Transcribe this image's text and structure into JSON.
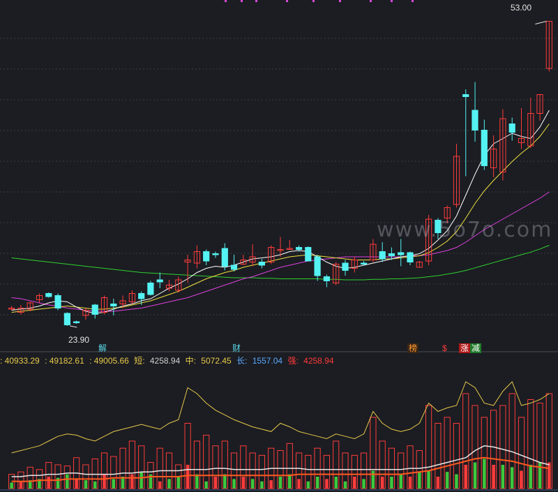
{
  "watermark": "www.5o7o.com",
  "price_labels": {
    "high": "53.00",
    "low": "23.90"
  },
  "event_tags": [
    {
      "text": "解",
      "color": "#5ad8e8",
      "bg": "transparent"
    },
    {
      "text": "财",
      "color": "#5ad8e8",
      "bg": "transparent"
    },
    {
      "text": "榜",
      "color": "#ff9a2e",
      "bg": "#3a2616"
    },
    {
      "text": "$",
      "color": "#ff3a3a",
      "bg": "transparent"
    },
    {
      "text": "涨",
      "color": "#ffffff",
      "bg": "#b01818"
    },
    {
      "text": "减",
      "color": "#ffffff",
      "bg": "#1e7a2a"
    }
  ],
  "info_bar": [
    {
      "text": ": 40933.29",
      "color": "#e8c84a"
    },
    {
      "text": ": 49182.61",
      "color": "#e8c84a"
    },
    {
      "text": ": 49005.66",
      "color": "#e8c84a"
    },
    {
      "text": "短:",
      "color": "#e8c84a"
    },
    {
      "text": "4258.94",
      "color": "#cfcfcf"
    },
    {
      "text": "中:",
      "color": "#e8c84a"
    },
    {
      "text": "5072.45",
      "color": "#e8c84a"
    },
    {
      "text": "长:",
      "color": "#5aa8ff"
    },
    {
      "text": "1557.04",
      "color": "#5aa8ff"
    },
    {
      "text": "强:",
      "color": "#ff3a3a"
    },
    {
      "text": "4258.94",
      "color": "#ff3a3a"
    }
  ],
  "colors": {
    "up": "#ff3b3b",
    "down": "#54f2f2",
    "ma_short": "#ffffff",
    "ma_mid": "#f0e040",
    "ma_long": "#e040e0",
    "ma_longer": "#30d030",
    "background": "#1b1d22"
  },
  "chart_data": {
    "type": "candlestick",
    "price_range": [
      22.5,
      54.5
    ],
    "candles": [
      [
        25.6,
        25.8,
        25.4,
        25.6
      ],
      [
        25.2,
        25.9,
        25.0,
        25.6
      ],
      [
        25.5,
        26.2,
        25.3,
        26.1
      ],
      [
        26.4,
        27.0,
        26.1,
        26.8
      ],
      [
        27.0,
        27.1,
        26.6,
        26.7
      ],
      [
        26.8,
        27.0,
        25.4,
        25.6
      ],
      [
        25.1,
        25.2,
        23.9,
        24.0
      ],
      [
        24.3,
        24.4,
        24.1,
        24.2
      ],
      [
        24.9,
        25.6,
        24.5,
        25.4
      ],
      [
        25.9,
        26.0,
        24.6,
        25.0
      ],
      [
        25.2,
        26.8,
        25.0,
        26.6
      ],
      [
        26.0,
        26.5,
        24.9,
        25.8
      ],
      [
        26.0,
        26.8,
        25.6,
        26.3
      ],
      [
        26.2,
        27.3,
        26.0,
        27.0
      ],
      [
        27.0,
        27.2,
        25.9,
        26.5
      ],
      [
        28.0,
        28.2,
        26.8,
        26.9
      ],
      [
        28.3,
        29.0,
        27.5,
        28.1
      ],
      [
        27.5,
        28.3,
        27.2,
        27.8
      ],
      [
        27.3,
        28.6,
        27.1,
        28.3
      ],
      [
        30.0,
        30.7,
        28.0,
        30.2
      ],
      [
        29.9,
        31.6,
        29.4,
        31.0
      ],
      [
        31.0,
        31.2,
        29.7,
        30.1
      ],
      [
        30.8,
        31.0,
        30.4,
        30.7
      ],
      [
        31.3,
        31.8,
        29.2,
        29.6
      ],
      [
        29.7,
        30.7,
        29.1,
        29.3
      ],
      [
        29.8,
        30.7,
        29.7,
        30.2
      ],
      [
        30.0,
        31.7,
        29.6,
        30.5
      ],
      [
        30.0,
        30.3,
        29.4,
        29.7
      ],
      [
        30.0,
        31.6,
        29.8,
        31.4
      ],
      [
        31.2,
        32.4,
        30.5,
        31.2
      ],
      [
        31.3,
        32.1,
        31.2,
        31.3
      ],
      [
        31.4,
        31.6,
        31.0,
        31.2
      ],
      [
        31.4,
        31.5,
        30.1,
        30.1
      ],
      [
        30.5,
        30.7,
        28.2,
        28.7
      ],
      [
        28.6,
        28.8,
        27.6,
        28.2
      ],
      [
        28.0,
        30.0,
        27.8,
        29.8
      ],
      [
        29.9,
        30.2,
        28.7,
        29.2
      ],
      [
        29.4,
        30.5,
        29.0,
        30.2
      ],
      [
        29.9,
        30.1,
        29.7,
        29.8
      ],
      [
        30.2,
        32.2,
        30.0,
        31.7
      ],
      [
        31.0,
        31.9,
        30.0,
        30.3
      ],
      [
        30.8,
        31.4,
        30.2,
        30.6
      ],
      [
        30.9,
        32.2,
        29.6,
        30.7
      ],
      [
        30.9,
        31.0,
        29.7,
        30.0
      ],
      [
        29.5,
        30.1,
        29.5,
        30.0
      ],
      [
        30.1,
        34.5,
        29.7,
        34.1
      ],
      [
        34.0,
        34.2,
        32.2,
        32.8
      ],
      [
        34.2,
        35.4,
        33.7,
        35.2
      ],
      [
        35.5,
        41.3,
        35.2,
        40.1
      ],
      [
        46.0,
        46.5,
        38.2,
        45.8
      ],
      [
        44.5,
        47.2,
        41.5,
        42.6
      ],
      [
        42.6,
        43.6,
        38.8,
        39.2
      ],
      [
        39.0,
        42.1,
        38.1,
        40.8
      ],
      [
        38.6,
        44.6,
        37.8,
        43.7
      ],
      [
        43.2,
        43.8,
        41.6,
        42.4
      ],
      [
        41.4,
        44.7,
        40.8,
        41.8
      ],
      [
        41.1,
        45.7,
        40.9,
        44.2
      ],
      [
        44.2,
        46.0,
        43.5,
        46.0
      ],
      [
        48.5,
        53.0,
        48.2,
        53.0
      ]
    ],
    "ma_short": [
      25.4,
      25.5,
      25.6,
      25.8,
      26.1,
      26.3,
      26.2,
      25.7,
      25.3,
      25.1,
      25.2,
      25.5,
      25.8,
      26.0,
      26.3,
      26.5,
      27.0,
      27.5,
      27.9,
      28.4,
      29.0,
      29.4,
      29.6,
      29.5,
      29.7,
      30.0,
      30.3,
      30.4,
      30.5,
      30.7,
      31.0,
      31.1,
      31.0,
      30.5,
      30.0,
      29.6,
      29.4,
      29.5,
      29.7,
      29.9,
      30.1,
      30.3,
      30.5,
      30.6,
      30.8,
      31.3,
      32.1,
      33.0,
      34.4,
      36.4,
      38.4,
      40.2,
      41.3,
      41.8,
      42.3,
      42.0,
      41.8,
      42.9,
      44.5
    ],
    "ma_mid": [
      25.2,
      25.3,
      25.4,
      25.5,
      25.6,
      25.7,
      25.8,
      25.7,
      25.6,
      25.5,
      25.5,
      25.6,
      25.7,
      25.9,
      26.1,
      26.3,
      26.6,
      26.9,
      27.2,
      27.6,
      28.0,
      28.4,
      28.7,
      29.0,
      29.2,
      29.5,
      29.7,
      29.9,
      30.1,
      30.3,
      30.5,
      30.6,
      30.7,
      30.6,
      30.5,
      30.4,
      30.3,
      30.2,
      30.2,
      30.2,
      30.3,
      30.3,
      30.4,
      30.5,
      30.6,
      30.9,
      31.4,
      32.0,
      32.9,
      34.2,
      35.6,
      36.8,
      37.8,
      38.7,
      39.6,
      40.4,
      41.1,
      42.0,
      43.2
    ],
    "ma_long": [
      26.6,
      26.5,
      26.3,
      26.1,
      25.9,
      25.8,
      25.6,
      25.5,
      25.4,
      25.3,
      25.3,
      25.3,
      25.4,
      25.5,
      25.6,
      25.8,
      26.0,
      26.2,
      26.4,
      26.6,
      26.9,
      27.2,
      27.5,
      27.8,
      28.1,
      28.4,
      28.6,
      28.9,
      29.2,
      29.5,
      29.7,
      29.9,
      30.1,
      30.2,
      30.3,
      30.4,
      30.5,
      30.5,
      30.5,
      30.5,
      30.5,
      30.5,
      30.5,
      30.6,
      30.6,
      30.7,
      30.9,
      31.1,
      31.4,
      31.9,
      32.5,
      33.1,
      33.6,
      34.1,
      34.6,
      35.1,
      35.6,
      36.1,
      36.7
    ],
    "ma_longer": [
      30.4,
      30.3,
      30.2,
      30.1,
      30.0,
      29.9,
      29.8,
      29.7,
      29.6,
      29.5,
      29.4,
      29.3,
      29.2,
      29.1,
      29.0,
      28.95,
      28.9,
      28.85,
      28.8,
      28.75,
      28.7,
      28.65,
      28.6,
      28.55,
      28.5,
      28.5,
      28.5,
      28.45,
      28.45,
      28.4,
      28.4,
      28.4,
      28.4,
      28.4,
      28.35,
      28.35,
      28.3,
      28.3,
      28.3,
      28.35,
      28.35,
      28.4,
      28.4,
      28.45,
      28.5,
      28.6,
      28.7,
      28.85,
      29.0,
      29.2,
      29.45,
      29.7,
      29.95,
      30.2,
      30.45,
      30.7,
      30.95,
      31.25,
      31.6
    ],
    "volume_bars": [
      [
        0.12,
        0.05
      ],
      [
        0.14,
        0.06
      ],
      [
        0.18,
        0.07
      ],
      [
        0.16,
        0.08
      ],
      [
        0.22,
        0.1
      ],
      [
        0.2,
        0.09
      ],
      [
        0.19,
        0.12
      ],
      [
        0.26,
        0.08
      ],
      [
        0.2,
        0.07
      ],
      [
        0.25,
        0.06
      ],
      [
        0.3,
        0.12
      ],
      [
        0.27,
        0.08
      ],
      [
        0.34,
        0.1
      ],
      [
        0.4,
        0.12
      ],
      [
        0.36,
        0.14
      ],
      [
        0.22,
        0.12
      ],
      [
        0.34,
        0.06
      ],
      [
        0.3,
        0.08
      ],
      [
        0.2,
        0.1
      ],
      [
        0.55,
        0.2
      ],
      [
        0.4,
        0.12
      ],
      [
        0.45,
        0.06
      ],
      [
        0.36,
        0.1
      ],
      [
        0.4,
        0.12
      ],
      [
        0.3,
        0.08
      ],
      [
        0.36,
        0.1
      ],
      [
        0.3,
        0.08
      ],
      [
        0.28,
        0.06
      ],
      [
        0.34,
        0.07
      ],
      [
        0.32,
        0.1
      ],
      [
        0.38,
        0.12
      ],
      [
        0.3,
        0.08
      ],
      [
        0.28,
        0.06
      ],
      [
        0.34,
        0.1
      ],
      [
        0.28,
        0.08
      ],
      [
        0.4,
        0.1
      ],
      [
        0.3,
        0.06
      ],
      [
        0.28,
        0.1
      ],
      [
        0.3,
        0.08
      ],
      [
        0.6,
        0.15
      ],
      [
        0.4,
        0.1
      ],
      [
        0.34,
        0.1
      ],
      [
        0.3,
        0.12
      ],
      [
        0.36,
        0.1
      ],
      [
        0.32,
        0.14
      ],
      [
        0.7,
        0.15
      ],
      [
        0.55,
        0.1
      ],
      [
        0.6,
        0.14
      ],
      [
        0.55,
        0.12
      ],
      [
        0.8,
        0.2
      ],
      [
        0.7,
        0.22
      ],
      [
        0.6,
        0.25
      ],
      [
        0.66,
        0.2
      ],
      [
        0.7,
        0.2
      ],
      [
        0.8,
        0.18
      ],
      [
        0.6,
        0.15
      ],
      [
        0.75,
        0.2
      ],
      [
        0.72,
        0.22
      ],
      [
        0.8,
        0.22
      ]
    ],
    "volume_line_white": [
      0.1,
      0.1,
      0.11,
      0.11,
      0.12,
      0.12,
      0.13,
      0.13,
      0.12,
      0.12,
      0.12,
      0.12,
      0.13,
      0.13,
      0.14,
      0.14,
      0.15,
      0.15,
      0.15,
      0.16,
      0.16,
      0.16,
      0.17,
      0.17,
      0.16,
      0.16,
      0.16,
      0.16,
      0.17,
      0.17,
      0.17,
      0.17,
      0.16,
      0.16,
      0.16,
      0.16,
      0.16,
      0.16,
      0.16,
      0.16,
      0.16,
      0.16,
      0.16,
      0.17,
      0.17,
      0.18,
      0.2,
      0.22,
      0.24,
      0.26,
      0.32,
      0.36,
      0.35,
      0.33,
      0.31,
      0.28,
      0.25,
      0.22,
      0.2
    ],
    "volume_line_orange": [
      0.06,
      0.06,
      0.06,
      0.07,
      0.07,
      0.07,
      0.08,
      0.08,
      0.08,
      0.08,
      0.08,
      0.09,
      0.09,
      0.09,
      0.09,
      0.1,
      0.1,
      0.1,
      0.1,
      0.11,
      0.11,
      0.11,
      0.11,
      0.11,
      0.11,
      0.11,
      0.11,
      0.11,
      0.11,
      0.11,
      0.11,
      0.12,
      0.12,
      0.12,
      0.12,
      0.12,
      0.12,
      0.12,
      0.12,
      0.12,
      0.12,
      0.12,
      0.12,
      0.13,
      0.14,
      0.15,
      0.17,
      0.19,
      0.21,
      0.23,
      0.25,
      0.26,
      0.25,
      0.24,
      0.23,
      0.21,
      0.19,
      0.18,
      0.17
    ],
    "volume_line_yellow": [
      0.3,
      0.32,
      0.34,
      0.36,
      0.4,
      0.44,
      0.46,
      0.45,
      0.42,
      0.4,
      0.44,
      0.48,
      0.5,
      0.52,
      0.54,
      0.52,
      0.5,
      0.55,
      0.58,
      0.85,
      0.8,
      0.72,
      0.66,
      0.62,
      0.58,
      0.55,
      0.52,
      0.5,
      0.48,
      0.55,
      0.52,
      0.48,
      0.46,
      0.44,
      0.42,
      0.46,
      0.44,
      0.42,
      0.46,
      0.65,
      0.55,
      0.5,
      0.48,
      0.5,
      0.55,
      0.72,
      0.65,
      0.68,
      0.7,
      0.9,
      0.85,
      0.72,
      0.7,
      0.82,
      0.9,
      0.7,
      0.72,
      0.75,
      0.8
    ]
  }
}
